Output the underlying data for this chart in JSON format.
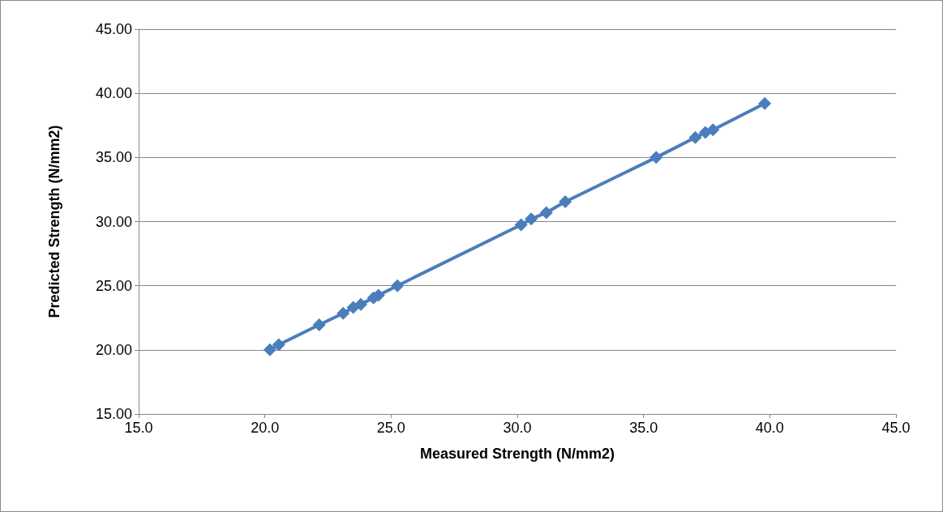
{
  "chart_data": {
    "type": "line",
    "xlabel": "Measured Strength (N/mm2)",
    "ylabel": "Predicted Strength (N/mm2)",
    "x": [
      20.2,
      20.55,
      22.15,
      23.1,
      23.5,
      23.8,
      24.3,
      24.5,
      25.25,
      30.15,
      30.55,
      31.15,
      31.9,
      35.5,
      37.05,
      37.45,
      37.75,
      39.8
    ],
    "series": [
      {
        "color": "#4a7ebb",
        "values": [
          20.0,
          20.4,
          21.95,
          22.85,
          23.3,
          23.55,
          24.05,
          24.25,
          25.0,
          29.75,
          30.2,
          30.7,
          31.55,
          35.0,
          36.55,
          36.95,
          37.15,
          39.2
        ]
      }
    ],
    "xlim": [
      15,
      45
    ],
    "xticks": [
      {
        "value": 15,
        "label": "15.0"
      },
      {
        "value": 20,
        "label": "20.0"
      },
      {
        "value": 25,
        "label": "25.0"
      },
      {
        "value": 30,
        "label": "30.0"
      },
      {
        "value": 35,
        "label": "35.0"
      },
      {
        "value": 40,
        "label": "40.0"
      },
      {
        "value": 45,
        "label": "45.0"
      }
    ],
    "ylim": [
      15,
      45
    ],
    "yticks": [
      {
        "value": 15,
        "label": "15.00"
      },
      {
        "value": 20,
        "label": "20.00"
      },
      {
        "value": 25,
        "label": "25.00"
      },
      {
        "value": 30,
        "label": "30.00"
      },
      {
        "value": 35,
        "label": "35.00"
      },
      {
        "value": 40,
        "label": "40.00"
      },
      {
        "value": 45,
        "label": "45.00"
      }
    ],
    "grid": "y",
    "marker": "diamond",
    "line_style": "solid"
  }
}
